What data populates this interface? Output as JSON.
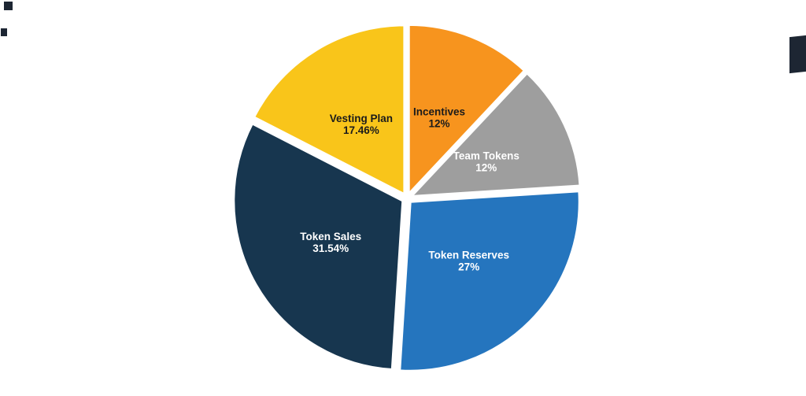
{
  "canvas": {
    "background": "#ffffff",
    "artifact_color": "#1d2633"
  },
  "chart_data": {
    "type": "pie",
    "title": "",
    "start_angle_deg": 0,
    "direction": "clockwise",
    "legend": "none",
    "labels_on_slices": true,
    "categories": [
      "Incentives",
      "Team Tokens",
      "Token Reserves",
      "Token Sales",
      "Vesting Plan"
    ],
    "values": [
      12,
      12,
      27,
      31.54,
      17.46
    ],
    "slices": [
      {
        "label": "Incentives",
        "pct_label": "12%",
        "value": 12,
        "color": "#F7941E",
        "text_color": "#1b1b1b"
      },
      {
        "label": "Team Tokens",
        "pct_label": "12%",
        "value": 12,
        "color": "#9E9E9E",
        "text_color": "#ffffff"
      },
      {
        "label": "Token Reserves",
        "pct_label": "27%",
        "value": 27,
        "color": "#2575BE",
        "text_color": "#ffffff"
      },
      {
        "label": "Token Sales",
        "pct_label": "31.54%",
        "value": 31.54,
        "color": "#17364F",
        "text_color": "#ffffff"
      },
      {
        "label": "Vesting Plan",
        "pct_label": "17.46%",
        "value": 17.46,
        "color": "#F9C51A",
        "text_color": "#1b1b1b"
      }
    ]
  }
}
